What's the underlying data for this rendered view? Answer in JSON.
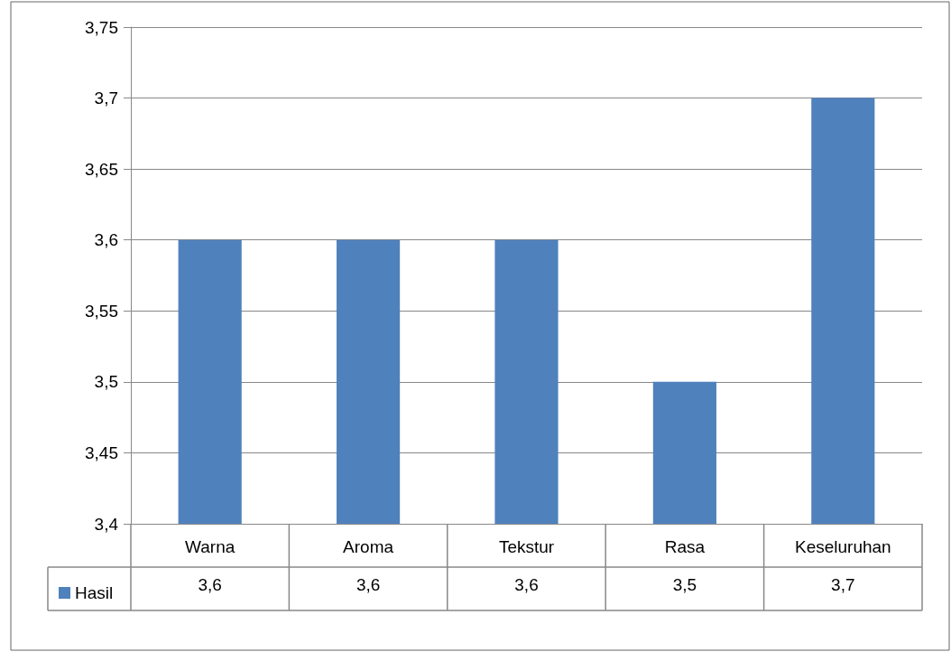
{
  "chart_data": {
    "type": "bar",
    "categories": [
      "Warna",
      "Aroma",
      "Tekstur",
      "Rasa",
      "Keseluruhan"
    ],
    "series": [
      {
        "name": "Hasil",
        "color": "#4f81bd",
        "values": [
          3.6,
          3.6,
          3.6,
          3.5,
          3.7
        ],
        "value_labels": [
          "3,6",
          "3,6",
          "3,6",
          "3,5",
          "3,7"
        ]
      }
    ],
    "ylim": [
      3.4,
      3.75
    ],
    "yticks": [
      {
        "value": 3.4,
        "label": "3,4"
      },
      {
        "value": 3.45,
        "label": "3,45"
      },
      {
        "value": 3.5,
        "label": "3,5"
      },
      {
        "value": 3.55,
        "label": "3,55"
      },
      {
        "value": 3.6,
        "label": "3,6"
      },
      {
        "value": 3.65,
        "label": "3,65"
      },
      {
        "value": 3.7,
        "label": "3,7"
      },
      {
        "value": 3.75,
        "label": "3,75"
      }
    ],
    "grid": "y",
    "legend": "bottom left"
  }
}
